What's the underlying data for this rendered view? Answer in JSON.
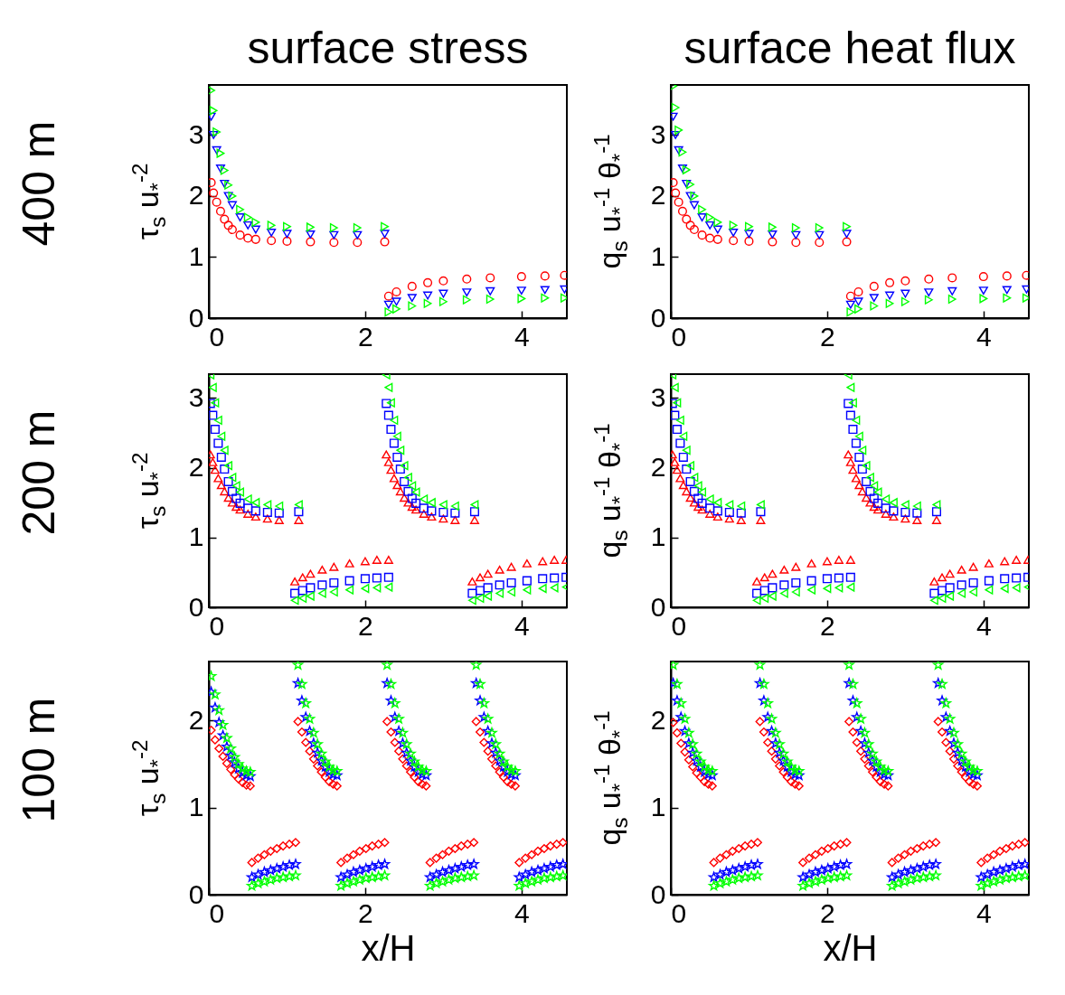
{
  "chart_data": [
    {
      "type": "scatter",
      "title": "surface stress",
      "ylabel": "τ$_{s}$ u$_{*}$$^{-2}$",
      "annotations": [
        "400 m"
      ],
      "xlim": [
        0,
        4.58
      ],
      "xticks": [
        0,
        2,
        4
      ],
      "ylim": [
        0,
        3.82
      ],
      "yticks": [
        0,
        1,
        2,
        3
      ],
      "grid": false,
      "x": [
        0.03,
        0.06,
        0.1,
        0.15,
        0.2,
        0.25,
        0.3,
        0.4,
        0.5,
        0.6,
        0.8,
        1.0,
        1.3,
        1.6,
        1.9,
        2.25,
        2.3,
        2.4,
        2.6,
        2.8,
        3.0,
        3.3,
        3.6,
        4.0,
        4.3,
        4.55
      ],
      "series": [
        {
          "color": "#ff0000",
          "marker": "circle",
          "values": [
            2.22,
            2.05,
            1.9,
            1.75,
            1.62,
            1.52,
            1.45,
            1.36,
            1.31,
            1.29,
            1.27,
            1.26,
            1.25,
            1.24,
            1.24,
            1.25,
            0.36,
            0.43,
            0.52,
            0.58,
            0.61,
            0.64,
            0.66,
            0.68,
            0.69,
            0.7
          ]
        },
        {
          "color": "#0000ff",
          "marker": "triangle-down",
          "values": [
            3.3,
            3.0,
            2.75,
            2.45,
            2.2,
            2.0,
            1.85,
            1.65,
            1.52,
            1.45,
            1.4,
            1.38,
            1.37,
            1.36,
            1.36,
            1.38,
            0.22,
            0.27,
            0.33,
            0.37,
            0.4,
            0.42,
            0.44,
            0.45,
            0.46,
            0.47
          ]
        },
        {
          "color": "#00ff00",
          "marker": "triangle-right",
          "values": [
            3.73,
            3.4,
            3.05,
            2.7,
            2.42,
            2.18,
            2.0,
            1.78,
            1.65,
            1.57,
            1.52,
            1.5,
            1.49,
            1.48,
            1.48,
            1.5,
            0.1,
            0.15,
            0.2,
            0.24,
            0.27,
            0.3,
            0.31,
            0.32,
            0.33,
            0.33
          ]
        }
      ]
    },
    {
      "type": "scatter",
      "title": "surface heat flux",
      "ylabel": "q$_{s}$ u$_{*}$$^{-1}$ θ$_{*}$$^{-1}$",
      "xlim": [
        0,
        4.58
      ],
      "xticks": [
        0,
        2,
        4
      ],
      "ylim": [
        0,
        3.82
      ],
      "yticks": [
        0,
        1,
        2,
        3
      ],
      "grid": false,
      "x": [
        0.03,
        0.06,
        0.1,
        0.15,
        0.2,
        0.25,
        0.3,
        0.4,
        0.5,
        0.6,
        0.8,
        1.0,
        1.3,
        1.6,
        1.9,
        2.25,
        2.3,
        2.4,
        2.6,
        2.8,
        3.0,
        3.3,
        3.6,
        4.0,
        4.3,
        4.55
      ],
      "series": [
        {
          "color": "#ff0000",
          "marker": "circle",
          "values": [
            2.22,
            2.05,
            1.9,
            1.75,
            1.62,
            1.52,
            1.45,
            1.36,
            1.31,
            1.29,
            1.27,
            1.26,
            1.25,
            1.24,
            1.24,
            1.25,
            0.36,
            0.43,
            0.52,
            0.58,
            0.61,
            0.64,
            0.66,
            0.68,
            0.69,
            0.7
          ]
        },
        {
          "color": "#0000ff",
          "marker": "triangle-down",
          "values": [
            3.3,
            3.0,
            2.75,
            2.45,
            2.2,
            2.0,
            1.85,
            1.65,
            1.52,
            1.45,
            1.4,
            1.38,
            1.37,
            1.36,
            1.36,
            1.38,
            0.22,
            0.27,
            0.33,
            0.37,
            0.4,
            0.42,
            0.44,
            0.45,
            0.46,
            0.47
          ]
        },
        {
          "color": "#00ff00",
          "marker": "triangle-right",
          "values": [
            3.8,
            3.45,
            3.08,
            2.72,
            2.43,
            2.19,
            2.0,
            1.78,
            1.65,
            1.57,
            1.52,
            1.5,
            1.49,
            1.48,
            1.48,
            1.5,
            0.1,
            0.15,
            0.2,
            0.24,
            0.27,
            0.3,
            0.31,
            0.32,
            0.33,
            0.33
          ]
        }
      ]
    },
    {
      "type": "scatter",
      "ylabel": "τ$_{s}$ u$_{*}$$^{-2}$",
      "annotations": [
        "200 m"
      ],
      "xlim": [
        0,
        4.58
      ],
      "xticks": [
        0,
        2,
        4
      ],
      "ylim": [
        0,
        3.34
      ],
      "yticks": [
        0,
        1,
        2,
        3
      ],
      "grid": false,
      "x": [
        0.02,
        0.05,
        0.08,
        0.12,
        0.16,
        0.2,
        0.25,
        0.3,
        0.35,
        0.4,
        0.5,
        0.6,
        0.75,
        0.9,
        1.15,
        1.1,
        1.2,
        1.3,
        1.45,
        1.6,
        1.8,
        2.0,
        2.15,
        2.3,
        2.27,
        2.3,
        2.33,
        2.37,
        2.41,
        2.45,
        2.5,
        2.55,
        2.6,
        2.65,
        2.75,
        2.85,
        3.0,
        3.15,
        3.4,
        3.37,
        3.47,
        3.57,
        3.72,
        3.87,
        4.07,
        4.27,
        4.42,
        4.57
      ],
      "series": [
        {
          "color": "#ff0000",
          "marker": "triangle",
          "values": [
            2.19,
            2.08,
            1.97,
            1.85,
            1.75,
            1.66,
            1.57,
            1.5,
            1.44,
            1.4,
            1.34,
            1.3,
            1.27,
            1.25,
            1.25,
            0.37,
            0.43,
            0.48,
            0.54,
            0.58,
            0.63,
            0.66,
            0.68,
            0.68,
            2.19,
            2.08,
            1.97,
            1.85,
            1.75,
            1.66,
            1.57,
            1.5,
            1.44,
            1.4,
            1.34,
            1.3,
            1.27,
            1.25,
            1.25,
            0.37,
            0.43,
            0.48,
            0.54,
            0.58,
            0.63,
            0.66,
            0.68,
            0.68
          ]
        },
        {
          "color": "#0000ff",
          "marker": "square",
          "values": [
            2.92,
            2.75,
            2.55,
            2.35,
            2.15,
            1.98,
            1.8,
            1.66,
            1.56,
            1.49,
            1.42,
            1.38,
            1.36,
            1.35,
            1.37,
            0.2,
            0.24,
            0.28,
            0.32,
            0.35,
            0.38,
            0.41,
            0.42,
            0.43,
            2.92,
            2.75,
            2.55,
            2.35,
            2.15,
            1.98,
            1.8,
            1.66,
            1.56,
            1.49,
            1.42,
            1.38,
            1.36,
            1.35,
            1.37,
            0.2,
            0.24,
            0.28,
            0.32,
            0.35,
            0.38,
            0.41,
            0.42,
            0.43
          ]
        },
        {
          "color": "#00ff00",
          "marker": "triangle-left",
          "values": [
            3.33,
            3.15,
            2.93,
            2.68,
            2.45,
            2.25,
            2.03,
            1.86,
            1.74,
            1.65,
            1.55,
            1.5,
            1.47,
            1.45,
            1.47,
            0.1,
            0.13,
            0.16,
            0.2,
            0.22,
            0.25,
            0.27,
            0.28,
            0.29,
            3.33,
            3.15,
            2.93,
            2.68,
            2.45,
            2.25,
            2.03,
            1.86,
            1.74,
            1.65,
            1.55,
            1.5,
            1.47,
            1.45,
            1.47,
            0.1,
            0.13,
            0.16,
            0.2,
            0.22,
            0.25,
            0.27,
            0.28,
            0.29
          ]
        }
      ]
    },
    {
      "type": "scatter",
      "ylabel": "q$_{s}$ u$_{*}$$^{-1}$ θ$_{*}$$^{-1}$",
      "xlim": [
        0,
        4.58
      ],
      "xticks": [
        0,
        2,
        4
      ],
      "ylim": [
        0,
        3.34
      ],
      "yticks": [
        0,
        1,
        2,
        3
      ],
      "grid": false,
      "x": [
        0.02,
        0.05,
        0.08,
        0.12,
        0.16,
        0.2,
        0.25,
        0.3,
        0.35,
        0.4,
        0.5,
        0.6,
        0.75,
        0.9,
        1.15,
        1.1,
        1.2,
        1.3,
        1.45,
        1.6,
        1.8,
        2.0,
        2.15,
        2.3,
        2.27,
        2.3,
        2.33,
        2.37,
        2.41,
        2.45,
        2.5,
        2.55,
        2.6,
        2.65,
        2.75,
        2.85,
        3.0,
        3.15,
        3.4,
        3.37,
        3.47,
        3.57,
        3.72,
        3.87,
        4.07,
        4.27,
        4.42,
        4.57
      ],
      "series": [
        {
          "color": "#ff0000",
          "marker": "triangle",
          "values": [
            2.19,
            2.08,
            1.97,
            1.85,
            1.75,
            1.66,
            1.57,
            1.5,
            1.44,
            1.4,
            1.34,
            1.3,
            1.27,
            1.25,
            1.25,
            0.37,
            0.43,
            0.48,
            0.54,
            0.58,
            0.63,
            0.66,
            0.68,
            0.68,
            2.19,
            2.08,
            1.97,
            1.85,
            1.75,
            1.66,
            1.57,
            1.5,
            1.44,
            1.4,
            1.34,
            1.3,
            1.27,
            1.25,
            1.25,
            0.37,
            0.43,
            0.48,
            0.54,
            0.58,
            0.63,
            0.66,
            0.68,
            0.68
          ]
        },
        {
          "color": "#0000ff",
          "marker": "square",
          "values": [
            2.92,
            2.75,
            2.55,
            2.35,
            2.15,
            1.98,
            1.8,
            1.66,
            1.56,
            1.49,
            1.42,
            1.38,
            1.36,
            1.35,
            1.37,
            0.2,
            0.24,
            0.28,
            0.32,
            0.35,
            0.38,
            0.41,
            0.42,
            0.43,
            2.92,
            2.75,
            2.55,
            2.35,
            2.15,
            1.98,
            1.8,
            1.66,
            1.56,
            1.49,
            1.42,
            1.38,
            1.36,
            1.35,
            1.37,
            0.2,
            0.24,
            0.28,
            0.32,
            0.35,
            0.38,
            0.41,
            0.42,
            0.43
          ]
        },
        {
          "color": "#00ff00",
          "marker": "triangle-left",
          "values": [
            3.33,
            3.15,
            2.93,
            2.68,
            2.45,
            2.25,
            2.03,
            1.86,
            1.74,
            1.65,
            1.55,
            1.5,
            1.47,
            1.45,
            1.47,
            0.1,
            0.13,
            0.16,
            0.2,
            0.22,
            0.25,
            0.27,
            0.28,
            0.29,
            3.33,
            3.15,
            2.93,
            2.68,
            2.45,
            2.25,
            2.03,
            1.86,
            1.74,
            1.65,
            1.55,
            1.5,
            1.47,
            1.45,
            1.47,
            0.1,
            0.13,
            0.16,
            0.2,
            0.22,
            0.25,
            0.27,
            0.28,
            0.29
          ]
        }
      ]
    },
    {
      "type": "scatter",
      "xlabel": "x/H",
      "ylabel": "τ$_{s}$ u$_{*}$$^{-2}$",
      "annotations": [
        "100 m"
      ],
      "xlim": [
        0,
        4.58
      ],
      "xticks": [
        0,
        2,
        4
      ],
      "ylim": [
        0,
        2.68
      ],
      "yticks": [
        0,
        1,
        2
      ],
      "grid": false,
      "x": [
        0.03,
        0.08,
        0.13,
        0.18,
        0.23,
        0.28,
        0.33,
        0.38,
        0.43,
        0.48,
        0.53,
        0.55,
        0.63,
        0.71,
        0.79,
        0.87,
        0.95,
        1.03,
        1.11,
        1.14,
        1.19,
        1.24,
        1.29,
        1.34,
        1.39,
        1.44,
        1.49,
        1.54,
        1.59,
        1.64,
        1.69,
        1.77,
        1.85,
        1.93,
        2.01,
        2.09,
        2.17,
        2.25,
        2.28,
        2.33,
        2.38,
        2.43,
        2.48,
        2.53,
        2.58,
        2.63,
        2.68,
        2.73,
        2.78,
        2.83,
        2.91,
        2.99,
        3.07,
        3.15,
        3.23,
        3.31,
        3.39,
        3.42,
        3.47,
        3.52,
        3.57,
        3.62,
        3.67,
        3.72,
        3.77,
        3.82,
        3.87,
        3.92,
        3.97,
        4.05,
        4.13,
        4.21,
        4.29,
        4.37,
        4.45,
        4.53
      ],
      "series": [
        {
          "color": "#ff0000",
          "marker": "diamond",
          "values": [
            1.89,
            1.78,
            1.68,
            1.59,
            1.51,
            1.44,
            1.38,
            1.33,
            1.29,
            1.26,
            1.25,
            0.37,
            0.42,
            0.46,
            0.5,
            0.53,
            0.56,
            0.58,
            0.6,
            1.99,
            1.87,
            1.75,
            1.65,
            1.56,
            1.48,
            1.41,
            1.35,
            1.3,
            1.27,
            1.25,
            0.37,
            0.42,
            0.46,
            0.5,
            0.53,
            0.56,
            0.58,
            0.6,
            1.99,
            1.87,
            1.75,
            1.65,
            1.56,
            1.48,
            1.41,
            1.35,
            1.3,
            1.27,
            1.25,
            0.37,
            0.42,
            0.46,
            0.5,
            0.53,
            0.56,
            0.58,
            0.6,
            1.99,
            1.87,
            1.75,
            1.65,
            1.56,
            1.48,
            1.41,
            1.35,
            1.3,
            1.27,
            1.25,
            0.37,
            0.42,
            0.46,
            0.5,
            0.53,
            0.56,
            0.58,
            0.6
          ]
        },
        {
          "color": "#0000ff",
          "marker": "star",
          "values": [
            2.33,
            2.15,
            1.98,
            1.83,
            1.7,
            1.6,
            1.52,
            1.45,
            1.4,
            1.37,
            1.36,
            0.2,
            0.23,
            0.26,
            0.28,
            0.3,
            0.32,
            0.34,
            0.35,
            2.43,
            2.23,
            2.04,
            1.88,
            1.74,
            1.63,
            1.54,
            1.47,
            1.41,
            1.38,
            1.37,
            0.2,
            0.23,
            0.26,
            0.28,
            0.3,
            0.32,
            0.34,
            0.35,
            2.43,
            2.23,
            2.04,
            1.88,
            1.74,
            1.63,
            1.54,
            1.47,
            1.41,
            1.38,
            1.37,
            0.2,
            0.23,
            0.26,
            0.28,
            0.3,
            0.32,
            0.34,
            0.35,
            2.43,
            2.23,
            2.04,
            1.88,
            1.74,
            1.63,
            1.54,
            1.47,
            1.41,
            1.38,
            1.37,
            0.2,
            0.23,
            0.26,
            0.28,
            0.3,
            0.32,
            0.34,
            0.35
          ]
        },
        {
          "color": "#00ff00",
          "marker": "star",
          "values": [
            2.51,
            2.3,
            2.12,
            1.95,
            1.8,
            1.68,
            1.58,
            1.5,
            1.45,
            1.42,
            1.41,
            0.1,
            0.13,
            0.15,
            0.17,
            0.19,
            0.2,
            0.21,
            0.22,
            2.64,
            2.42,
            2.2,
            2.02,
            1.86,
            1.73,
            1.62,
            1.53,
            1.47,
            1.43,
            1.42,
            0.1,
            0.13,
            0.15,
            0.17,
            0.19,
            0.2,
            0.21,
            0.22,
            2.64,
            2.42,
            2.2,
            2.02,
            1.86,
            1.73,
            1.62,
            1.53,
            1.47,
            1.43,
            1.42,
            0.1,
            0.13,
            0.15,
            0.17,
            0.19,
            0.2,
            0.21,
            0.22,
            2.64,
            2.42,
            2.2,
            2.02,
            1.86,
            1.73,
            1.62,
            1.53,
            1.47,
            1.43,
            1.42,
            0.1,
            0.13,
            0.15,
            0.17,
            0.19,
            0.2,
            0.21,
            0.22
          ]
        }
      ]
    },
    {
      "type": "scatter",
      "xlabel": "x/H",
      "ylabel": "q$_{s}$ u$_{*}$$^{-1}$ θ$_{*}$$^{-1}$",
      "xlim": [
        0,
        4.58
      ],
      "xticks": [
        0,
        2,
        4
      ],
      "ylim": [
        0,
        2.68
      ],
      "yticks": [
        0,
        1,
        2
      ],
      "grid": false,
      "x": [
        0.03,
        0.08,
        0.13,
        0.18,
        0.23,
        0.28,
        0.33,
        0.38,
        0.43,
        0.48,
        0.53,
        0.55,
        0.63,
        0.71,
        0.79,
        0.87,
        0.95,
        1.03,
        1.11,
        1.14,
        1.19,
        1.24,
        1.29,
        1.34,
        1.39,
        1.44,
        1.49,
        1.54,
        1.59,
        1.64,
        1.69,
        1.77,
        1.85,
        1.93,
        2.01,
        2.09,
        2.17,
        2.25,
        2.28,
        2.33,
        2.38,
        2.43,
        2.48,
        2.53,
        2.58,
        2.63,
        2.68,
        2.73,
        2.78,
        2.83,
        2.91,
        2.99,
        3.07,
        3.15,
        3.23,
        3.31,
        3.39,
        3.42,
        3.47,
        3.52,
        3.57,
        3.62,
        3.67,
        3.72,
        3.77,
        3.82,
        3.87,
        3.92,
        3.97,
        4.05,
        4.13,
        4.21,
        4.29,
        4.37,
        4.45,
        4.53
      ],
      "series": [
        {
          "color": "#ff0000",
          "marker": "diamond",
          "values": [
            1.98,
            1.86,
            1.74,
            1.64,
            1.55,
            1.47,
            1.4,
            1.35,
            1.3,
            1.27,
            1.25,
            0.37,
            0.42,
            0.46,
            0.5,
            0.53,
            0.56,
            0.58,
            0.6,
            1.99,
            1.87,
            1.75,
            1.65,
            1.56,
            1.48,
            1.41,
            1.35,
            1.3,
            1.27,
            1.25,
            0.37,
            0.42,
            0.46,
            0.5,
            0.53,
            0.56,
            0.58,
            0.6,
            1.99,
            1.87,
            1.75,
            1.65,
            1.56,
            1.48,
            1.41,
            1.35,
            1.3,
            1.27,
            1.25,
            0.37,
            0.42,
            0.46,
            0.5,
            0.53,
            0.56,
            0.58,
            0.6,
            1.99,
            1.87,
            1.75,
            1.65,
            1.56,
            1.48,
            1.41,
            1.35,
            1.3,
            1.27,
            1.25,
            0.37,
            0.42,
            0.46,
            0.5,
            0.53,
            0.56,
            0.58,
            0.6
          ]
        },
        {
          "color": "#0000ff",
          "marker": "star",
          "values": [
            2.43,
            2.23,
            2.04,
            1.88,
            1.74,
            1.63,
            1.54,
            1.47,
            1.41,
            1.38,
            1.37,
            0.2,
            0.23,
            0.26,
            0.28,
            0.3,
            0.32,
            0.34,
            0.35,
            2.43,
            2.23,
            2.04,
            1.88,
            1.74,
            1.63,
            1.54,
            1.47,
            1.41,
            1.38,
            1.37,
            0.2,
            0.23,
            0.26,
            0.28,
            0.3,
            0.32,
            0.34,
            0.35,
            2.43,
            2.23,
            2.04,
            1.88,
            1.74,
            1.63,
            1.54,
            1.47,
            1.41,
            1.38,
            1.37,
            0.2,
            0.23,
            0.26,
            0.28,
            0.3,
            0.32,
            0.34,
            0.35,
            2.43,
            2.23,
            2.04,
            1.88,
            1.74,
            1.63,
            1.54,
            1.47,
            1.41,
            1.38,
            1.37,
            0.2,
            0.23,
            0.26,
            0.28,
            0.3,
            0.32,
            0.34,
            0.35
          ]
        },
        {
          "color": "#00ff00",
          "marker": "star",
          "values": [
            2.64,
            2.42,
            2.2,
            2.02,
            1.86,
            1.73,
            1.62,
            1.53,
            1.47,
            1.43,
            1.42,
            0.1,
            0.13,
            0.15,
            0.17,
            0.19,
            0.2,
            0.21,
            0.22,
            2.64,
            2.42,
            2.2,
            2.02,
            1.86,
            1.73,
            1.62,
            1.53,
            1.47,
            1.43,
            1.42,
            0.1,
            0.13,
            0.15,
            0.17,
            0.19,
            0.2,
            0.21,
            0.22,
            2.64,
            2.42,
            2.2,
            2.02,
            1.86,
            1.73,
            1.62,
            1.53,
            1.47,
            1.43,
            1.42,
            0.1,
            0.13,
            0.15,
            0.17,
            0.19,
            0.2,
            0.21,
            0.22,
            2.64,
            2.42,
            2.2,
            2.02,
            1.86,
            1.73,
            1.62,
            1.53,
            1.47,
            1.43,
            1.42,
            0.1,
            0.13,
            0.15,
            0.17,
            0.19,
            0.2,
            0.21,
            0.22
          ]
        }
      ]
    }
  ]
}
